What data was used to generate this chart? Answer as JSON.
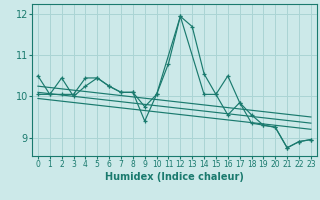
{
  "xlabel": "Humidex (Indice chaleur)",
  "xlim": [
    -0.5,
    23.5
  ],
  "ylim": [
    8.55,
    12.25
  ],
  "yticks": [
    9,
    10,
    11,
    12
  ],
  "xticks": [
    0,
    1,
    2,
    3,
    4,
    5,
    6,
    7,
    8,
    9,
    10,
    11,
    12,
    13,
    14,
    15,
    16,
    17,
    18,
    19,
    20,
    21,
    22,
    23
  ],
  "background_color": "#cce9e9",
  "grid_color": "#aad4d4",
  "line_color": "#1a7a6e",
  "lines": [
    {
      "x": [
        0,
        1,
        2,
        3,
        4,
        5,
        6,
        7,
        8,
        9,
        10,
        11,
        12,
        13,
        14,
        15,
        16,
        17,
        18,
        19,
        20,
        21,
        22,
        23
      ],
      "y": [
        10.5,
        10.05,
        10.45,
        10.0,
        10.25,
        10.45,
        10.25,
        10.1,
        10.1,
        9.4,
        10.05,
        10.8,
        11.95,
        11.7,
        10.55,
        10.05,
        10.5,
        9.85,
        9.55,
        9.3,
        9.25,
        8.75,
        8.9,
        8.95
      ],
      "marker": true
    },
    {
      "x": [
        0,
        1,
        2,
        3,
        4,
        5,
        6,
        7,
        8,
        9,
        10,
        12,
        14,
        15,
        16,
        17,
        18,
        19,
        20,
        21,
        22,
        23
      ],
      "y": [
        10.05,
        10.05,
        10.05,
        10.05,
        10.45,
        10.45,
        10.25,
        10.1,
        10.1,
        9.75,
        10.05,
        11.95,
        10.05,
        10.05,
        9.55,
        9.85,
        9.35,
        9.3,
        9.25,
        8.75,
        8.9,
        8.95
      ],
      "marker": true
    },
    {
      "x": [
        0,
        23
      ],
      "y": [
        10.25,
        9.5
      ],
      "marker": false
    },
    {
      "x": [
        0,
        23
      ],
      "y": [
        10.1,
        9.35
      ],
      "marker": false
    },
    {
      "x": [
        0,
        23
      ],
      "y": [
        9.95,
        9.2
      ],
      "marker": false
    }
  ]
}
